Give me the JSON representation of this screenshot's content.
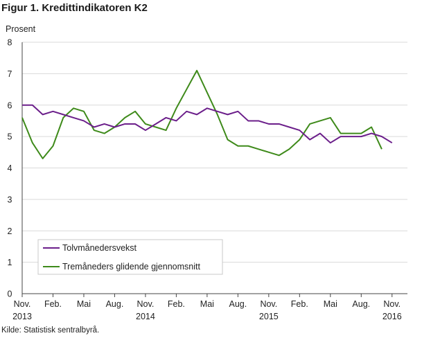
{
  "figure": {
    "title": "Figur 1. Kredittindikatoren K2",
    "y_unit": "Prosent",
    "source": "Kilde: Statistisk sentralbyrå."
  },
  "colors": {
    "series1": "#6b1e8a",
    "series2": "#3e8a1a",
    "grid": "#d9d9d9",
    "axis": "#444444"
  },
  "chart_data": {
    "type": "line",
    "ylim": [
      0,
      8
    ],
    "yticks": [
      0,
      1,
      2,
      3,
      4,
      5,
      6,
      7,
      8
    ],
    "xlim": [
      0,
      37.5
    ],
    "x_ticks": [
      {
        "pos": 0,
        "label": "Nov.",
        "year": "2013"
      },
      {
        "pos": 3,
        "label": "Feb.",
        "year": ""
      },
      {
        "pos": 6,
        "label": "Mai",
        "year": ""
      },
      {
        "pos": 9,
        "label": "Aug.",
        "year": ""
      },
      {
        "pos": 12,
        "label": "Nov.",
        "year": "2014"
      },
      {
        "pos": 15,
        "label": "Feb.",
        "year": ""
      },
      {
        "pos": 18,
        "label": "Mai",
        "year": ""
      },
      {
        "pos": 21,
        "label": "Aug.",
        "year": ""
      },
      {
        "pos": 24,
        "label": "Nov.",
        "year": "2015"
      },
      {
        "pos": 27,
        "label": "Feb.",
        "year": ""
      },
      {
        "pos": 30,
        "label": "Mai",
        "year": ""
      },
      {
        "pos": 33,
        "label": "Aug.",
        "year": ""
      },
      {
        "pos": 36,
        "label": "Nov.",
        "year": "2016"
      }
    ],
    "series": [
      {
        "name": "Tolvmånedersvekst",
        "x": [
          0,
          1,
          2,
          3,
          4,
          5,
          6,
          7,
          8,
          9,
          10,
          11,
          12,
          13,
          14,
          15,
          16,
          17,
          18,
          19,
          20,
          21,
          22,
          23,
          24,
          25,
          26,
          27,
          28,
          29,
          30,
          31,
          32,
          33,
          34,
          35,
          36
        ],
        "values": [
          6.0,
          6.0,
          5.7,
          5.8,
          5.7,
          5.6,
          5.5,
          5.3,
          5.4,
          5.3,
          5.4,
          5.4,
          5.2,
          5.4,
          5.6,
          5.5,
          5.8,
          5.7,
          5.9,
          5.8,
          5.7,
          5.8,
          5.5,
          5.5,
          5.4,
          5.4,
          5.3,
          5.2,
          4.9,
          5.1,
          4.8,
          5.0,
          5.0,
          5.0,
          5.1,
          5.0,
          4.8
        ]
      },
      {
        "name": "Tremåneders glidende gjennomsnitt",
        "x": [
          0,
          1,
          2,
          3,
          4,
          5,
          6,
          7,
          8,
          9,
          10,
          11,
          12,
          13,
          14,
          15,
          16,
          17,
          18,
          19,
          20,
          21,
          22,
          23,
          24,
          25,
          26,
          27,
          28,
          29,
          30,
          31,
          32,
          33,
          34,
          35
        ],
        "values": [
          5.6,
          4.8,
          4.3,
          4.7,
          5.6,
          5.9,
          5.8,
          5.2,
          5.1,
          5.3,
          5.6,
          5.8,
          5.4,
          5.3,
          5.2,
          5.9,
          6.5,
          7.1,
          6.4,
          5.7,
          4.9,
          4.7,
          4.7,
          4.6,
          4.5,
          4.4,
          4.6,
          4.9,
          5.4,
          5.5,
          5.6,
          5.1,
          5.1,
          5.1,
          5.3,
          4.6
        ]
      }
    ]
  }
}
